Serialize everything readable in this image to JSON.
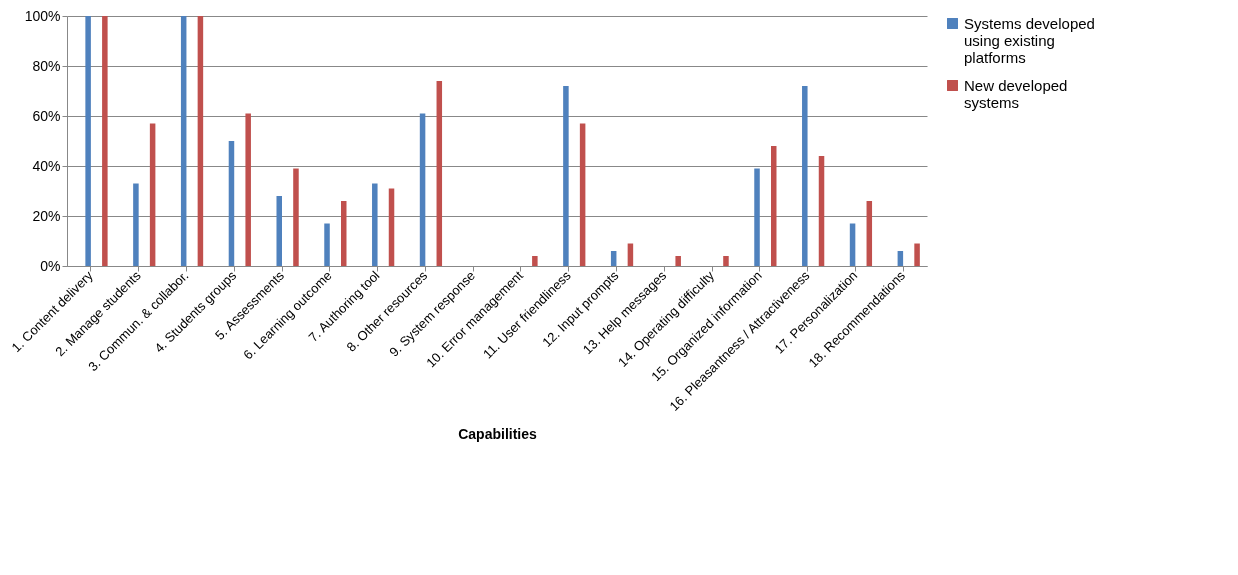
{
  "chart_data": {
    "type": "bar",
    "xlabel": "Capabilities",
    "categories": [
      "1. Content delivery",
      "2. Manage students",
      "3. Commun. & collabor.",
      "4. Students groups",
      "5. Assessments",
      "6. Learning outcome",
      "7. Authoring tool",
      "8. Other resources",
      "9. System response",
      "10. Error management",
      "11. User friendliness",
      "12. Input prompts",
      "13. Help messages",
      "14. Operating difficulty",
      "15. Organized information",
      "16. Pleasantness / Attractiveness",
      "17. Personalization",
      "18. Recommendations"
    ],
    "series": [
      {
        "name": "Systems developed using existing platforms",
        "color": "#4f81bd",
        "values": [
          100,
          33,
          100,
          50,
          28,
          17,
          33,
          61,
          0,
          0,
          72,
          6,
          0,
          0,
          39,
          72,
          17,
          6
        ]
      },
      {
        "name": "New developed systems",
        "color": "#c0504d",
        "values": [
          100,
          57,
          100,
          61,
          39,
          26,
          31,
          74,
          0,
          4,
          57,
          9,
          4,
          4,
          48,
          44,
          26,
          9
        ]
      }
    ],
    "ylim": [
      0,
      100
    ],
    "yticks": [
      {
        "value": 0,
        "label": "0%"
      },
      {
        "value": 20,
        "label": "20%"
      },
      {
        "value": 40,
        "label": "40%"
      },
      {
        "value": 60,
        "label": "60%"
      },
      {
        "value": 80,
        "label": "80%"
      },
      {
        "value": 100,
        "label": "100%"
      }
    ],
    "grid": "y",
    "legend": "right"
  }
}
